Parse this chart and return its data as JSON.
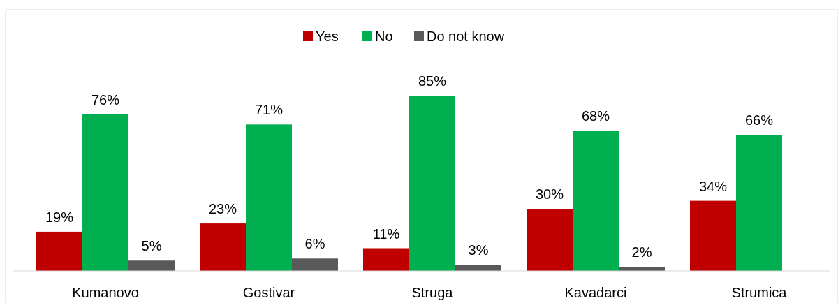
{
  "chart_data": {
    "type": "bar",
    "categories": [
      "Kumanovo",
      "Gostivar",
      "Struga",
      "Kavadarci",
      "Strumica"
    ],
    "series": [
      {
        "name": "Yes",
        "color": "#c00000",
        "values": [
          19,
          23,
          11,
          30,
          34
        ],
        "value_labels": [
          "19%",
          "23%",
          "11%",
          "30%",
          "34%"
        ]
      },
      {
        "name": "No",
        "color": "#00b050",
        "values": [
          76,
          71,
          85,
          68,
          66
        ],
        "value_labels": [
          "76%",
          "71%",
          "85%",
          "68%",
          "66%"
        ]
      },
      {
        "name": "Do not know",
        "color": "#595959",
        "values": [
          5,
          6,
          3,
          2,
          null
        ],
        "value_labels": [
          "5%",
          "6%",
          "3%",
          "2%",
          null
        ]
      }
    ],
    "legend": "top"
  }
}
